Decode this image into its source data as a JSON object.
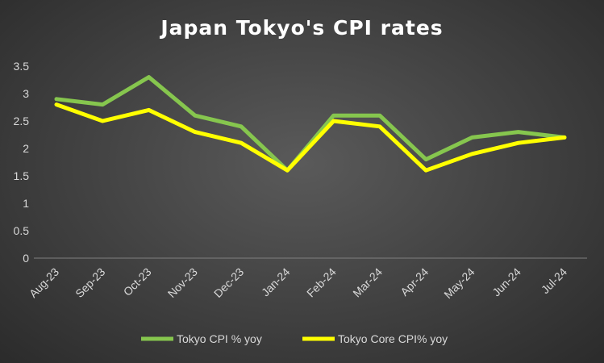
{
  "chart_data": {
    "type": "line",
    "title": "Japan Tokyo's CPI rates",
    "xlabel": "",
    "ylabel": "",
    "ylim": [
      0,
      3.5
    ],
    "yticks": [
      "0",
      "0.5",
      "1",
      "1.5",
      "2",
      "2.5",
      "3",
      "3.5"
    ],
    "grid": false,
    "legend_position": "bottom",
    "categories": [
      "Aug-23",
      "Sep-23",
      "Oct-23",
      "Nov-23",
      "Dec-23",
      "Jan-24",
      "Feb-24",
      "Mar-24",
      "Apr-24",
      "May-24",
      "Jun-24",
      "Jul-24"
    ],
    "series": [
      {
        "name": "Tokyo CPI % yoy",
        "color": "#86c64e",
        "values": [
          2.9,
          2.8,
          3.3,
          2.6,
          2.4,
          1.6,
          2.6,
          2.6,
          1.8,
          2.2,
          2.3,
          2.2
        ]
      },
      {
        "name": "Tokyo Core CPI% yoy",
        "color": "#ffff00",
        "values": [
          2.8,
          2.5,
          2.7,
          2.3,
          2.1,
          1.6,
          2.5,
          2.4,
          1.6,
          1.9,
          2.1,
          2.2
        ]
      }
    ]
  }
}
